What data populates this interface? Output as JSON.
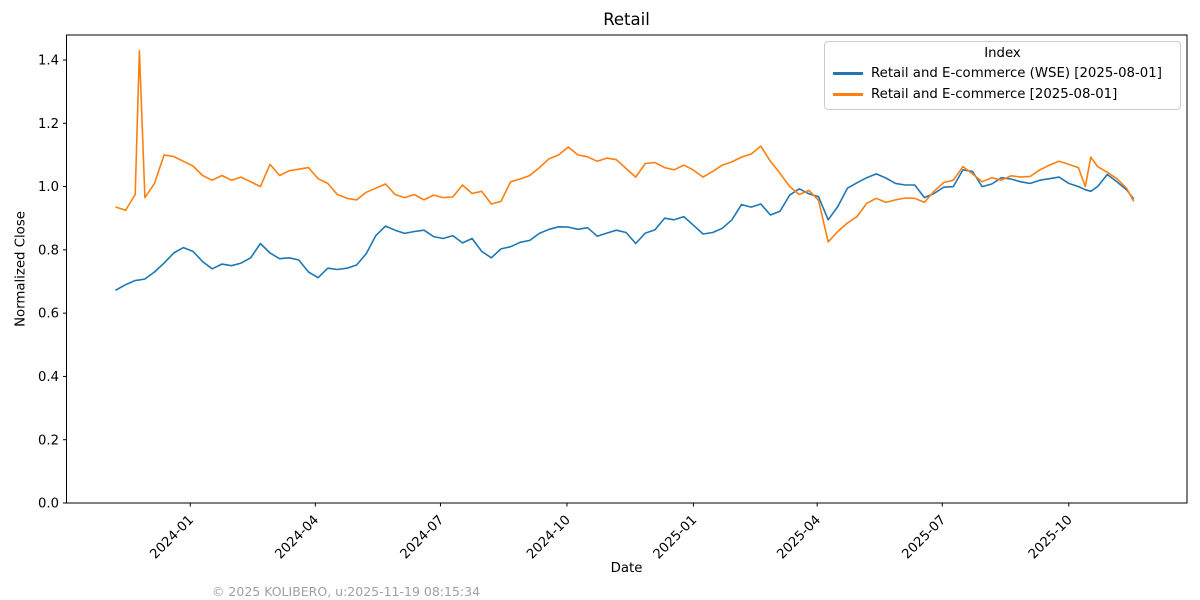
{
  "footer": "© 2025 KOLIBERO, u:2025-11-19 08:15:34",
  "legend": {
    "title": "Index",
    "entries": [
      {
        "label": "Retail and E-commerce (WSE) [2025-08-01]",
        "color": "#1f77b4"
      },
      {
        "label": "Retail and E-commerce [2025-08-01]",
        "color": "#ff7f0e"
      }
    ]
  },
  "chart_data": {
    "type": "line",
    "title": "Retail",
    "xlabel": "Date",
    "ylabel": "Normalized Close",
    "grid": false,
    "legend_position": "upper right",
    "xlim": [
      "2023-10-03",
      "2025-12-26"
    ],
    "ylim": [
      0.0,
      1.479
    ],
    "yticks": [
      0.0,
      0.2,
      0.4,
      0.6,
      0.8,
      1.0,
      1.2,
      1.4
    ],
    "xticks": [
      "2024-01",
      "2024-04",
      "2024-07",
      "2024-10",
      "2025-01",
      "2025-04",
      "2025-07",
      "2025-10"
    ],
    "x": [
      "2023-11-08",
      "2023-11-15",
      "2023-11-22",
      "2023-11-25",
      "2023-11-29",
      "2023-12-06",
      "2023-12-13",
      "2023-12-20",
      "2023-12-27",
      "2024-01-03",
      "2024-01-10",
      "2024-01-17",
      "2024-01-24",
      "2024-01-31",
      "2024-02-07",
      "2024-02-14",
      "2024-02-21",
      "2024-02-28",
      "2024-03-06",
      "2024-03-13",
      "2024-03-20",
      "2024-03-27",
      "2024-04-03",
      "2024-04-10",
      "2024-04-17",
      "2024-04-24",
      "2024-05-01",
      "2024-05-08",
      "2024-05-15",
      "2024-05-22",
      "2024-05-29",
      "2024-06-05",
      "2024-06-12",
      "2024-06-19",
      "2024-06-26",
      "2024-07-03",
      "2024-07-10",
      "2024-07-17",
      "2024-07-24",
      "2024-07-31",
      "2024-08-07",
      "2024-08-14",
      "2024-08-21",
      "2024-08-28",
      "2024-09-04",
      "2024-09-11",
      "2024-09-18",
      "2024-09-25",
      "2024-10-02",
      "2024-10-09",
      "2024-10-16",
      "2024-10-23",
      "2024-10-30",
      "2024-11-06",
      "2024-11-13",
      "2024-11-20",
      "2024-11-27",
      "2024-12-04",
      "2024-12-11",
      "2024-12-18",
      "2024-12-25",
      "2025-01-01",
      "2025-01-08",
      "2025-01-15",
      "2025-01-22",
      "2025-01-29",
      "2025-02-05",
      "2025-02-12",
      "2025-02-19",
      "2025-02-26",
      "2025-03-05",
      "2025-03-12",
      "2025-03-19",
      "2025-03-26",
      "2025-04-02",
      "2025-04-09",
      "2025-04-16",
      "2025-04-23",
      "2025-04-30",
      "2025-05-07",
      "2025-05-14",
      "2025-05-21",
      "2025-05-28",
      "2025-06-04",
      "2025-06-11",
      "2025-06-18",
      "2025-06-25",
      "2025-07-02",
      "2025-07-09",
      "2025-07-16",
      "2025-07-23",
      "2025-07-30",
      "2025-08-06",
      "2025-08-13",
      "2025-08-20",
      "2025-08-27",
      "2025-09-03",
      "2025-09-10",
      "2025-09-17",
      "2025-09-24",
      "2025-10-01",
      "2025-10-08",
      "2025-10-13",
      "2025-10-17",
      "2025-10-22",
      "2025-10-29",
      "2025-11-05",
      "2025-11-12",
      "2025-11-17"
    ],
    "series": [
      {
        "name": "Retail and E-commerce (WSE) [2025-08-01]",
        "color": "#1f77b4",
        "values": [
          0.673,
          0.69,
          0.703,
          0.705,
          0.708,
          0.73,
          0.758,
          0.79,
          0.807,
          0.795,
          0.763,
          0.74,
          0.755,
          0.75,
          0.758,
          0.775,
          0.82,
          0.79,
          0.772,
          0.775,
          0.768,
          0.73,
          0.712,
          0.742,
          0.738,
          0.742,
          0.752,
          0.788,
          0.845,
          0.875,
          0.862,
          0.852,
          0.858,
          0.862,
          0.842,
          0.836,
          0.845,
          0.822,
          0.836,
          0.795,
          0.775,
          0.803,
          0.81,
          0.824,
          0.83,
          0.852,
          0.865,
          0.873,
          0.872,
          0.865,
          0.87,
          0.843,
          0.853,
          0.862,
          0.855,
          0.82,
          0.853,
          0.863,
          0.9,
          0.895,
          0.905,
          0.878,
          0.85,
          0.855,
          0.868,
          0.895,
          0.943,
          0.935,
          0.945,
          0.91,
          0.922,
          0.973,
          0.993,
          0.977,
          0.968,
          0.895,
          0.937,
          0.995,
          1.012,
          1.028,
          1.04,
          1.027,
          1.01,
          1.005,
          1.005,
          0.965,
          0.978,
          0.998,
          1.0,
          1.053,
          1.048,
          1.0,
          1.008,
          1.028,
          1.024,
          1.015,
          1.01,
          1.02,
          1.025,
          1.03,
          1.01,
          1.0,
          0.99,
          0.985,
          1.0,
          1.038,
          1.015,
          0.99,
          0.962
        ]
      },
      {
        "name": "Retail and E-commerce [2025-08-01]",
        "color": "#ff7f0e",
        "values": [
          0.935,
          0.925,
          0.975,
          1.43,
          0.965,
          1.01,
          1.1,
          1.095,
          1.08,
          1.065,
          1.035,
          1.02,
          1.035,
          1.02,
          1.03,
          1.015,
          1.0,
          1.07,
          1.035,
          1.05,
          1.055,
          1.06,
          1.025,
          1.01,
          0.975,
          0.963,
          0.958,
          0.982,
          0.995,
          1.008,
          0.975,
          0.965,
          0.975,
          0.958,
          0.973,
          0.965,
          0.967,
          1.005,
          0.978,
          0.985,
          0.945,
          0.953,
          1.015,
          1.024,
          1.035,
          1.06,
          1.088,
          1.1,
          1.125,
          1.1,
          1.094,
          1.08,
          1.09,
          1.085,
          1.057,
          1.03,
          1.073,
          1.076,
          1.06,
          1.053,
          1.068,
          1.052,
          1.03,
          1.048,
          1.068,
          1.078,
          1.093,
          1.103,
          1.128,
          1.08,
          1.042,
          1.0,
          0.975,
          0.988,
          0.957,
          0.825,
          0.858,
          0.885,
          0.905,
          0.947,
          0.963,
          0.95,
          0.958,
          0.964,
          0.963,
          0.95,
          0.985,
          1.013,
          1.02,
          1.063,
          1.04,
          1.015,
          1.028,
          1.02,
          1.034,
          1.03,
          1.032,
          1.053,
          1.068,
          1.08,
          1.07,
          1.06,
          1.0,
          1.093,
          1.063,
          1.045,
          1.025,
          0.995,
          0.955
        ]
      }
    ]
  }
}
